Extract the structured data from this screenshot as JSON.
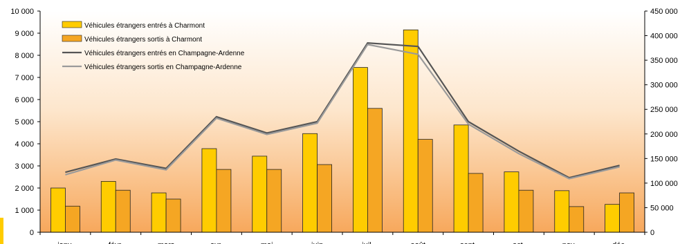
{
  "chart_data": {
    "type": "bar+line",
    "categories": [
      "janv.",
      "févr.",
      "mars",
      "avr.",
      "mai",
      "juin",
      "juil.",
      "août",
      "sept.",
      "oct.",
      "nov.",
      "déc."
    ],
    "category_labels_partially_visible": true,
    "bar_series": [
      {
        "name": "Véhicules étrangers entrés à Charmont",
        "color": "#FFCC00",
        "axis": "left",
        "values": [
          2000,
          2300,
          1780,
          3780,
          3440,
          4460,
          7450,
          9150,
          4850,
          2730,
          1880,
          1260
        ]
      },
      {
        "name": "Véhicules étrangers sortis à Charmont",
        "color": "#F5A623",
        "axis": "left",
        "values": [
          1180,
          1900,
          1500,
          2840,
          2840,
          3060,
          5600,
          4200,
          2660,
          1900,
          1160,
          1780
        ]
      }
    ],
    "line_series": [
      {
        "name": "Véhicules étrangers entrés en Champagne-Ardenne",
        "color": "#555555",
        "axis": "right",
        "values": [
          122000,
          149000,
          130000,
          235000,
          202000,
          225000,
          385000,
          378000,
          225000,
          165000,
          111000,
          136000
        ]
      },
      {
        "name": "Véhicules étrangers sortis en Champagne-Ardenne",
        "color": "#9A9A9A",
        "axis": "right",
        "values": [
          117000,
          147000,
          127000,
          232000,
          199000,
          222000,
          382000,
          362000,
          220000,
          160000,
          109000,
          133000
        ]
      }
    ],
    "y_left": {
      "min": 0,
      "max": 10000,
      "step": 1000,
      "tick_labels": [
        "0",
        "1 000",
        "2 000",
        "3 000",
        "4 000",
        "5 000",
        "6 000",
        "7 000",
        "8 000",
        "9 000",
        "10 000"
      ]
    },
    "y_right": {
      "min": 0,
      "max": 450000,
      "step": 50000,
      "tick_labels": [
        "0",
        "50 000",
        "100 000",
        "150 000",
        "200 000",
        "250 000",
        "300 000",
        "350 000",
        "400 000",
        "450 000"
      ]
    },
    "legend": {
      "position": "top-left",
      "entries": [
        "Véhicules étrangers entrés à Charmont",
        "Véhicules étrangers sortis à Charmont",
        "Véhicules étrangers entrés en Champagne-Ardenne",
        "Véhicules étrangers sortis en Champagne-Ardenne"
      ]
    },
    "background": {
      "top": "#FFFFFF",
      "bottom": "#F7A85C"
    },
    "grid": false
  }
}
